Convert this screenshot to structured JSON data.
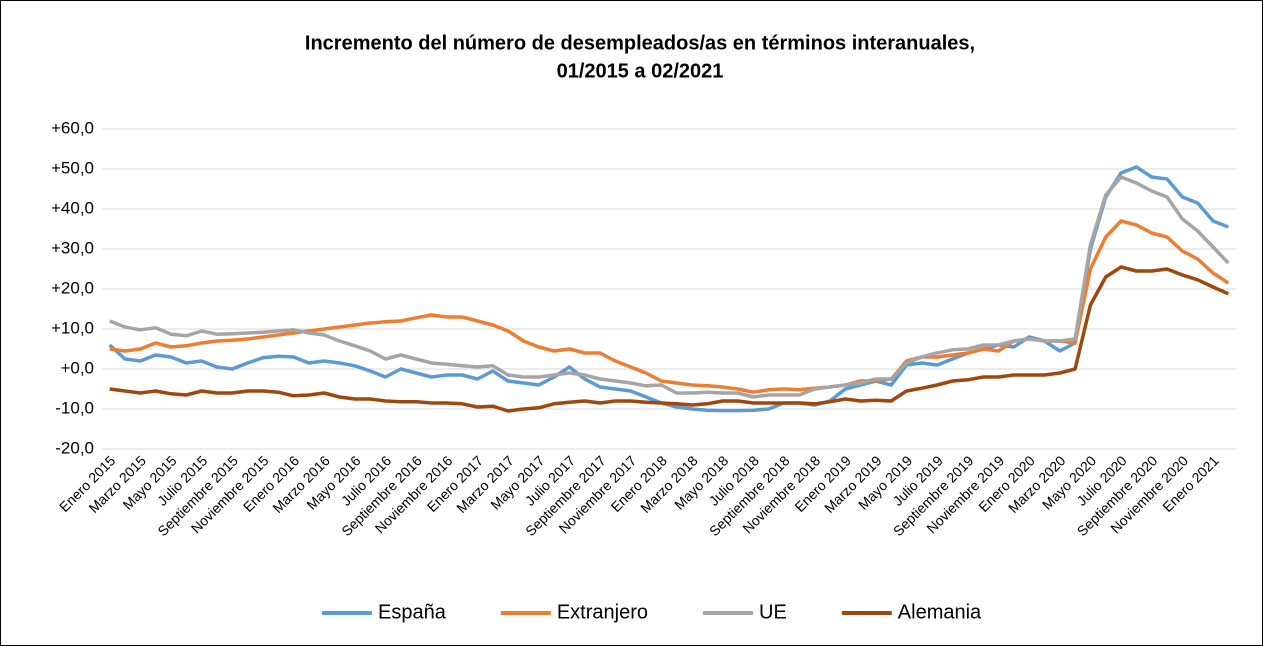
{
  "chart_data": {
    "type": "line",
    "title": [
      "Incremento del número de desempleados/as en términos interanuales,",
      "01/2015 a 02/2021"
    ],
    "categories": [
      "Enero 2015",
      null,
      "Marzo 2015",
      null,
      "Mayo 2015",
      null,
      "Julio 2015",
      null,
      "Septiembre 2015",
      null,
      "Noviembre 2015",
      null,
      "Enero 2016",
      null,
      "Marzo 2016",
      null,
      "Mayo 2016",
      null,
      "Julio 2016",
      null,
      "Septiembre 2016",
      null,
      "Noviembre 2016",
      null,
      "Enero 2017",
      null,
      "Marzo 2017",
      null,
      "Mayo 2017",
      null,
      "Julio 2017",
      null,
      "Septiembre 2017",
      null,
      "Noviembre 2017",
      null,
      "Enero 2018",
      null,
      "Marzo 2018",
      null,
      "Mayo 2018",
      null,
      "Julio 2018",
      null,
      "Septiembre 2018",
      null,
      "Noviembre 2018",
      null,
      "Enero 2019",
      null,
      "Marzo 2019",
      null,
      "Mayo 2019",
      null,
      "Julio 2019",
      null,
      "Septiembre 2019",
      null,
      "Noviembre 2019",
      null,
      "Enero 2020",
      null,
      "Marzo 2020",
      null,
      "Mayo 2020",
      null,
      "Julio 2020",
      null,
      "Septiembre 2020",
      null,
      "Noviembre 2020",
      null,
      "Enero 2021",
      null
    ],
    "series": [
      {
        "name": "España",
        "color": "#5b9bd5",
        "values": [
          6,
          2.5,
          2,
          3.5,
          3,
          1.5,
          2,
          0.5,
          0,
          1.5,
          2.8,
          3.2,
          3,
          1.5,
          2,
          1.5,
          0.8,
          -0.5,
          -2,
          0,
          -1,
          -2,
          -1.5,
          -1.5,
          -2.5,
          -0.5,
          -3,
          -3.5,
          -4,
          -2,
          0.5,
          -2.5,
          -4.5,
          -5,
          -5.5,
          -7,
          -8.5,
          -9.5,
          -10,
          -10.3,
          -10.4,
          -10.4,
          -10.3,
          -10,
          -8.5,
          -8.5,
          -9,
          -8,
          -5,
          -4,
          -3,
          -4,
          1,
          1.5,
          1,
          2.5,
          4,
          5,
          6,
          5.5,
          8,
          7,
          4.5,
          6.5,
          30,
          43,
          49,
          50.5,
          48,
          47.5,
          43,
          41.5,
          37,
          35.5
        ]
      },
      {
        "name": "Extranjero",
        "color": "#ed7d31",
        "values": [
          5,
          4.5,
          5,
          6.5,
          5.5,
          5.8,
          6.5,
          7,
          7.2,
          7.5,
          8,
          8.5,
          9,
          9.5,
          10,
          10.5,
          11,
          11.5,
          11.8,
          12,
          12.8,
          13.5,
          13,
          13,
          12,
          11,
          9.5,
          7,
          5.5,
          4.5,
          5,
          4,
          4,
          2,
          0.5,
          -1,
          -3,
          -3.5,
          -4,
          -4.2,
          -4.5,
          -5,
          -5.8,
          -5.2,
          -5,
          -5.2,
          -4.8,
          -4.5,
          -4,
          -3,
          -3,
          -2.5,
          2,
          3,
          3,
          3.5,
          4,
          5,
          4.5,
          7,
          7.5,
          7,
          7,
          6.5,
          25,
          33,
          37,
          36,
          34,
          33,
          29.5,
          27.5,
          24,
          21.5
        ]
      },
      {
        "name": "UE",
        "color": "#a5a5a5",
        "values": [
          12,
          10.5,
          9.8,
          10.3,
          8.7,
          8.3,
          9.5,
          8.7,
          8.8,
          9,
          9.2,
          9.5,
          9.8,
          9,
          8.5,
          7,
          5.8,
          4.5,
          2.5,
          3.5,
          2.5,
          1.5,
          1.2,
          0.8,
          0.5,
          0.8,
          -1.5,
          -2,
          -2,
          -1.5,
          -1,
          -1.5,
          -2.5,
          -3,
          -3.5,
          -4.2,
          -4,
          -6,
          -6,
          -5.8,
          -6,
          -6,
          -7,
          -6.5,
          -6.5,
          -6.5,
          -5,
          -4.5,
          -4,
          -3.5,
          -2.5,
          -2.5,
          1.5,
          3,
          4,
          4.8,
          5,
          6,
          6,
          7,
          7.5,
          7,
          7,
          7.5,
          31,
          43.5,
          48,
          46.5,
          44.5,
          43,
          37.5,
          34.5,
          30.5,
          26.5
        ]
      },
      {
        "name": "Alemania",
        "color": "#9e480e",
        "values": [
          -5,
          -5.5,
          -6,
          -5.5,
          -6.2,
          -6.5,
          -5.5,
          -6,
          -6,
          -5.5,
          -5.5,
          -5.8,
          -6.7,
          -6.5,
          -6,
          -7,
          -7.5,
          -7.5,
          -8,
          -8.2,
          -8.2,
          -8.5,
          -8.5,
          -8.7,
          -9.5,
          -9.3,
          -10.5,
          -10,
          -9.7,
          -8.7,
          -8.3,
          -8,
          -8.5,
          -8,
          -8,
          -8.3,
          -8.5,
          -8.7,
          -9,
          -8.7,
          -8,
          -8,
          -8.5,
          -8.5,
          -8.5,
          -8.5,
          -8.7,
          -8.2,
          -7.5,
          -8,
          -7.8,
          -8,
          -5.5,
          -4.8,
          -4,
          -3,
          -2.7,
          -2,
          -2,
          -1.5,
          -1.5,
          -1.5,
          -1,
          0,
          16,
          23,
          25.5,
          24.5,
          24.5,
          25,
          23.5,
          22.3,
          20.5,
          18.8
        ]
      }
    ],
    "ylim": [
      -20,
      60
    ],
    "yticks": [
      {
        "value": -20,
        "label": "-20,0"
      },
      {
        "value": -10,
        "label": "-10,0"
      },
      {
        "value": 0,
        "label": "+0,0"
      },
      {
        "value": 10,
        "label": "+10,0"
      },
      {
        "value": 20,
        "label": "+20,0"
      },
      {
        "value": 30,
        "label": "+30,0"
      },
      {
        "value": 40,
        "label": "+40,0"
      },
      {
        "value": 50,
        "label": "+50,0"
      },
      {
        "value": 60,
        "label": "+60,0"
      }
    ],
    "grid": true,
    "legend": "bottom"
  }
}
